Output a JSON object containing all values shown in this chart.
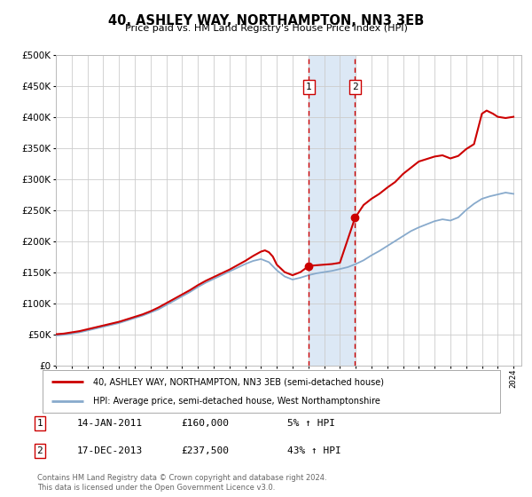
{
  "title": "40, ASHLEY WAY, NORTHAMPTON, NN3 3EB",
  "subtitle": "Price paid vs. HM Land Registry's House Price Index (HPI)",
  "legend_line1": "40, ASHLEY WAY, NORTHAMPTON, NN3 3EB (semi-detached house)",
  "legend_line2": "HPI: Average price, semi-detached house, West Northamptonshire",
  "footer1": "Contains HM Land Registry data © Crown copyright and database right 2024.",
  "footer2": "This data is licensed under the Open Government Licence v3.0.",
  "annotation1_label": "1",
  "annotation1_date": "14-JAN-2011",
  "annotation1_price": "£160,000",
  "annotation1_hpi": "5% ↑ HPI",
  "annotation2_label": "2",
  "annotation2_date": "17-DEC-2013",
  "annotation2_price": "£237,500",
  "annotation2_hpi": "43% ↑ HPI",
  "sale1_year": 2011.04,
  "sale1_value": 160000,
  "sale2_year": 2013.96,
  "sale2_value": 237500,
  "red_line_color": "#cc0000",
  "blue_line_color": "#88aacc",
  "shade_color": "#dce8f5",
  "grid_color": "#cccccc",
  "bg_color": "#ffffff",
  "ylim": [
    0,
    500000
  ],
  "xlim_start": 1995,
  "xlim_end": 2024.5,
  "red_x": [
    1995.0,
    1995.5,
    1996.0,
    1996.5,
    1997.0,
    1997.5,
    1998.0,
    1998.5,
    1999.0,
    1999.5,
    2000.0,
    2000.5,
    2001.0,
    2001.5,
    2002.0,
    2002.5,
    2003.0,
    2003.5,
    2004.0,
    2004.5,
    2005.0,
    2005.5,
    2006.0,
    2006.5,
    2007.0,
    2007.5,
    2008.0,
    2008.25,
    2008.5,
    2008.75,
    2009.0,
    2009.5,
    2010.0,
    2010.5,
    2011.04,
    2011.5,
    2012.0,
    2012.5,
    2013.0,
    2013.96,
    2014.5,
    2015.0,
    2015.5,
    2016.0,
    2016.5,
    2017.0,
    2017.5,
    2018.0,
    2018.5,
    2019.0,
    2019.5,
    2020.0,
    2020.5,
    2021.0,
    2021.5,
    2022.0,
    2022.3,
    2022.7,
    2023.0,
    2023.5,
    2024.0
  ],
  "red_y": [
    50000,
    51000,
    53000,
    55000,
    58000,
    61000,
    64000,
    67000,
    70000,
    74000,
    78000,
    82000,
    87000,
    93000,
    100000,
    107000,
    114000,
    121000,
    129000,
    136000,
    142000,
    148000,
    154000,
    161000,
    168000,
    176000,
    183000,
    185000,
    182000,
    175000,
    162000,
    150000,
    145000,
    150000,
    160000,
    161000,
    162000,
    163000,
    165000,
    237500,
    258000,
    268000,
    276000,
    286000,
    295000,
    308000,
    318000,
    328000,
    332000,
    336000,
    338000,
    333000,
    337000,
    348000,
    356000,
    405000,
    410000,
    405000,
    400000,
    398000,
    400000
  ],
  "blue_x": [
    1995.0,
    1995.5,
    1996.0,
    1996.5,
    1997.0,
    1997.5,
    1998.0,
    1998.5,
    1999.0,
    1999.5,
    2000.0,
    2000.5,
    2001.0,
    2001.5,
    2002.0,
    2002.5,
    2003.0,
    2003.5,
    2004.0,
    2004.5,
    2005.0,
    2005.5,
    2006.0,
    2006.5,
    2007.0,
    2007.5,
    2008.0,
    2008.5,
    2009.0,
    2009.5,
    2010.0,
    2010.5,
    2011.0,
    2011.5,
    2012.0,
    2012.5,
    2013.0,
    2013.5,
    2014.0,
    2014.5,
    2015.0,
    2015.5,
    2016.0,
    2016.5,
    2017.0,
    2017.5,
    2018.0,
    2018.5,
    2019.0,
    2019.5,
    2020.0,
    2020.5,
    2021.0,
    2021.5,
    2022.0,
    2022.5,
    2023.0,
    2023.5,
    2024.0
  ],
  "blue_y": [
    48000,
    49000,
    51000,
    53000,
    56000,
    59000,
    62000,
    65000,
    68000,
    72000,
    76000,
    80000,
    85000,
    90000,
    97000,
    104000,
    111000,
    118000,
    126000,
    133000,
    139000,
    145000,
    151000,
    157000,
    163000,
    168000,
    171000,
    166000,
    153000,
    143000,
    138000,
    141000,
    145000,
    148000,
    150000,
    152000,
    155000,
    158000,
    163000,
    169000,
    177000,
    184000,
    192000,
    200000,
    208000,
    216000,
    222000,
    227000,
    232000,
    235000,
    233000,
    238000,
    250000,
    260000,
    268000,
    272000,
    275000,
    278000,
    276000
  ]
}
